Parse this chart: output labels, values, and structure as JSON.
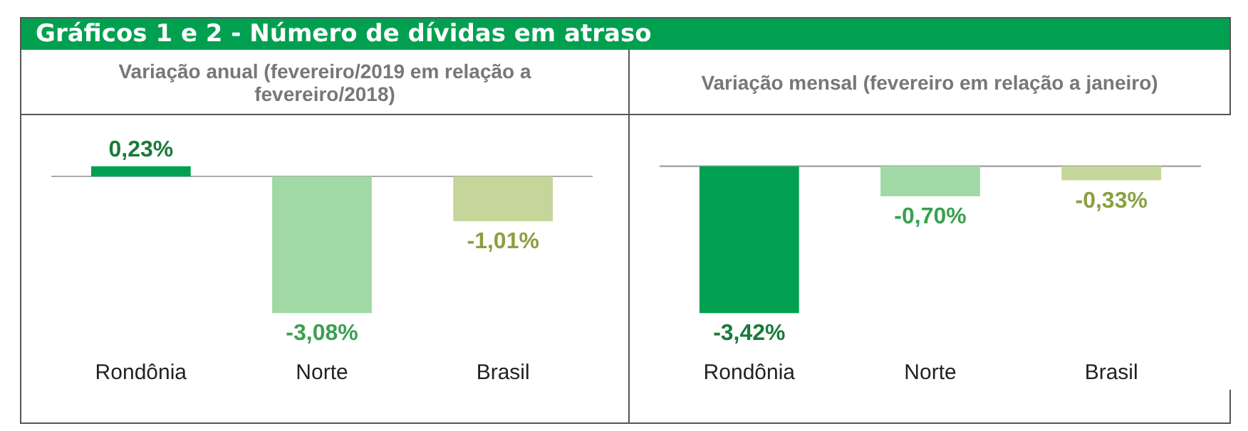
{
  "chart_data": [
    {
      "type": "bar",
      "title": "Gráficos 1 e 2 - Número de dívidas em atraso",
      "subtitle": "Variação anual (fevereiro/2019 em relação a fevereiro/2018)",
      "categories": [
        "Rondônia",
        "Norte",
        "Brasil"
      ],
      "values": [
        0.23,
        -3.08,
        -1.01
      ],
      "value_labels": [
        "0,23%",
        "-3,08%",
        "-1,01%"
      ],
      "colors": [
        "#00a050",
        "#a0d8a6",
        "#c4d69a"
      ]
    },
    {
      "type": "bar",
      "subtitle": "Variação mensal (fevereiro em relação a janeiro)",
      "categories": [
        "Rondônia",
        "Norte",
        "Brasil"
      ],
      "values": [
        -3.42,
        -0.7,
        -0.33
      ],
      "value_labels": [
        "-3,42%",
        "-0,70%",
        "-0,33%"
      ],
      "colors": [
        "#00a050",
        "#a0d8a6",
        "#c4d69a"
      ]
    }
  ]
}
